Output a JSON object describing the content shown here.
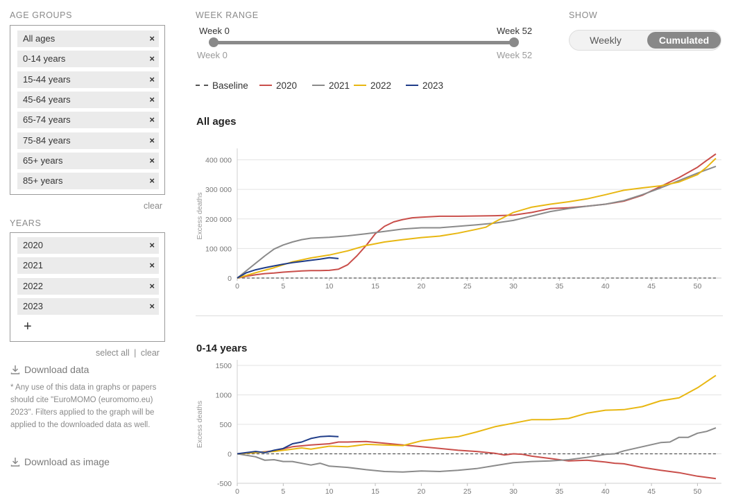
{
  "filters": {
    "age_groups_label": "AGE GROUPS",
    "age_groups": [
      "All ages",
      "0-14 years",
      "15-44 years",
      "45-64 years",
      "65-74 years",
      "75-84 years",
      "65+ years",
      "85+ years"
    ],
    "remove_glyph": "×",
    "clear_label": "clear",
    "years_label": "YEARS",
    "years": [
      "2020",
      "2021",
      "2022",
      "2023"
    ],
    "add_glyph": "+",
    "select_all_label": "select all",
    "separator": "|",
    "download_data_label": "Download data",
    "note": "* Any use of this data in graphs or papers should cite \"EuroMOMO (euromomo.eu) 2023\". Filters applied to the graph will be applied to the downloaded data as well.",
    "download_image_label": "Download as image"
  },
  "week_range": {
    "label": "WEEK RANGE",
    "start_label": "Week 0",
    "end_label": "Week 52",
    "min_label": "Week 0",
    "max_label": "Week 52",
    "start": 0,
    "end": 52
  },
  "show": {
    "label": "SHOW",
    "options": [
      "Weekly",
      "Cumulated"
    ],
    "selected": "Cumulated"
  },
  "legend": [
    {
      "name": "Baseline",
      "color": "#555555",
      "dashed": true
    },
    {
      "name": "2020",
      "color": "#c94e4a"
    },
    {
      "name": "2021",
      "color": "#8a8a8a"
    },
    {
      "name": "2022",
      "color": "#e8b712"
    },
    {
      "name": "2023",
      "color": "#1f3c88"
    }
  ],
  "chart_data": [
    {
      "type": "line",
      "title": "All ages",
      "ylabel": "Excess deaths",
      "xlim": [
        0,
        52
      ],
      "ylim": [
        0,
        420000
      ],
      "xticks": [
        0,
        5,
        10,
        15,
        20,
        25,
        30,
        35,
        40,
        45,
        50
      ],
      "yticks": [
        0,
        100000,
        200000,
        300000,
        400000
      ],
      "ytick_labels": [
        "0",
        "100 000",
        "200 000",
        "300 000",
        "400 000"
      ],
      "baseline": 0,
      "series": [
        {
          "name": "2020",
          "color": "#c94e4a",
          "x": [
            0,
            1,
            2,
            3,
            4,
            5,
            6,
            7,
            8,
            9,
            10,
            11,
            12,
            13,
            14,
            15,
            16,
            17,
            18,
            19,
            20,
            22,
            24,
            26,
            28,
            30,
            32,
            34,
            36,
            38,
            40,
            42,
            44,
            46,
            48,
            50,
            51,
            52
          ],
          "y": [
            0,
            6000,
            11000,
            15000,
            17000,
            20000,
            22000,
            24000,
            25000,
            25000,
            26000,
            30000,
            45000,
            75000,
            110000,
            150000,
            175000,
            190000,
            198000,
            204000,
            206000,
            209000,
            209000,
            210000,
            211000,
            213000,
            222000,
            235000,
            238000,
            243000,
            250000,
            260000,
            280000,
            310000,
            340000,
            375000,
            398000,
            420000
          ]
        },
        {
          "name": "2021",
          "color": "#8a8a8a",
          "x": [
            0,
            1,
            2,
            3,
            4,
            5,
            6,
            7,
            8,
            10,
            12,
            14,
            16,
            18,
            20,
            22,
            24,
            26,
            28,
            30,
            32,
            34,
            36,
            38,
            40,
            42,
            44,
            46,
            48,
            50,
            52
          ],
          "y": [
            0,
            25000,
            50000,
            75000,
            98000,
            112000,
            122000,
            130000,
            135000,
            138000,
            143000,
            150000,
            158000,
            166000,
            170000,
            170000,
            175000,
            180000,
            186000,
            195000,
            210000,
            225000,
            235000,
            243000,
            250000,
            262000,
            282000,
            305000,
            330000,
            355000,
            378000
          ]
        },
        {
          "name": "2022",
          "color": "#e8b712",
          "x": [
            0,
            2,
            4,
            6,
            8,
            10,
            12,
            14,
            16,
            18,
            20,
            22,
            24,
            26,
            27,
            28,
            30,
            32,
            34,
            36,
            38,
            40,
            42,
            44,
            46,
            48,
            50,
            51,
            52
          ],
          "y": [
            0,
            18000,
            35000,
            55000,
            68000,
            78000,
            92000,
            110000,
            122000,
            130000,
            137000,
            142000,
            152000,
            165000,
            172000,
            190000,
            222000,
            240000,
            250000,
            258000,
            268000,
            282000,
            297000,
            305000,
            312000,
            325000,
            350000,
            375000,
            405000
          ]
        },
        {
          "name": "2023",
          "color": "#1f3c88",
          "x": [
            0,
            1,
            2,
            3,
            4,
            5,
            6,
            7,
            8,
            9,
            10,
            11
          ],
          "y": [
            0,
            18000,
            28000,
            35000,
            41000,
            47000,
            52000,
            56000,
            60000,
            64000,
            69000,
            66000
          ]
        }
      ]
    },
    {
      "type": "line",
      "title": "0-14 years",
      "ylabel": "Excess deaths",
      "xlim": [
        0,
        52
      ],
      "ylim": [
        -500,
        1500
      ],
      "xticks": [
        0,
        5,
        10,
        15,
        20,
        25,
        30,
        35,
        40,
        45,
        50
      ],
      "yticks": [
        -500,
        0,
        500,
        1000,
        1500
      ],
      "ytick_labels": [
        "-500",
        "0",
        "500",
        "1000",
        "1500"
      ],
      "baseline": 0,
      "series": [
        {
          "name": "2020",
          "color": "#c94e4a",
          "x": [
            0,
            2,
            4,
            6,
            8,
            10,
            11,
            12,
            14,
            16,
            18,
            20,
            22,
            24,
            26,
            28,
            29,
            30,
            31,
            32,
            34,
            36,
            38,
            40,
            41,
            42,
            43,
            44,
            46,
            48,
            50,
            51,
            52
          ],
          "y": [
            0,
            20,
            50,
            120,
            150,
            170,
            200,
            200,
            210,
            180,
            150,
            120,
            90,
            60,
            40,
            10,
            -20,
            0,
            -10,
            -40,
            -80,
            -120,
            -110,
            -140,
            -160,
            -170,
            -200,
            -230,
            -280,
            -320,
            -380,
            -400,
            -420
          ]
        },
        {
          "name": "2021",
          "color": "#8a8a8a",
          "x": [
            0,
            2,
            3,
            4,
            5,
            6,
            8,
            9,
            10,
            12,
            14,
            16,
            18,
            20,
            22,
            24,
            26,
            28,
            30,
            32,
            34,
            36,
            38,
            40,
            41,
            42,
            44,
            46,
            47,
            48,
            49,
            50,
            51,
            52
          ],
          "y": [
            0,
            -50,
            -110,
            -100,
            -130,
            -130,
            -190,
            -160,
            -210,
            -230,
            -270,
            -300,
            -310,
            -290,
            -300,
            -280,
            -250,
            -200,
            -150,
            -130,
            -120,
            -100,
            -60,
            -10,
            0,
            50,
            120,
            190,
            200,
            280,
            280,
            350,
            380,
            440
          ]
        },
        {
          "name": "2022",
          "color": "#e8b712",
          "x": [
            0,
            2,
            4,
            6,
            7,
            8,
            10,
            12,
            14,
            16,
            18,
            20,
            22,
            24,
            26,
            28,
            30,
            32,
            34,
            36,
            38,
            40,
            42,
            44,
            46,
            48,
            50,
            52
          ],
          "y": [
            0,
            20,
            40,
            80,
            100,
            80,
            130,
            120,
            160,
            150,
            140,
            220,
            260,
            290,
            370,
            460,
            520,
            580,
            580,
            600,
            690,
            740,
            750,
            800,
            900,
            950,
            1120,
            1330
          ]
        },
        {
          "name": "2023",
          "color": "#1f3c88",
          "x": [
            0,
            1,
            2,
            3,
            4,
            5,
            6,
            7,
            8,
            9,
            10,
            11
          ],
          "y": [
            0,
            20,
            40,
            20,
            60,
            90,
            170,
            200,
            260,
            290,
            300,
            290
          ]
        }
      ]
    }
  ]
}
